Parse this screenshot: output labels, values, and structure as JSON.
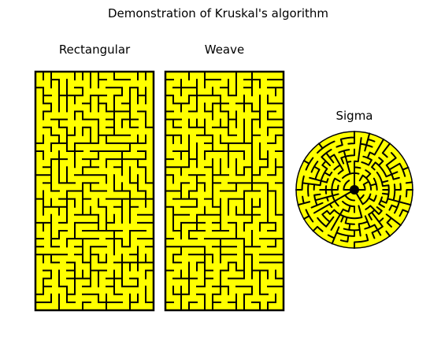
{
  "figure": {
    "title": "Demonstration of Kruskal's algorithm",
    "background": "#ffffff"
  },
  "panels": {
    "rectangular": {
      "title": "Rectangular"
    },
    "weave": {
      "title": "Weave"
    },
    "sigma": {
      "title": "Sigma"
    }
  },
  "colors": {
    "passage": "#ffff00",
    "wall": "#000000"
  }
}
